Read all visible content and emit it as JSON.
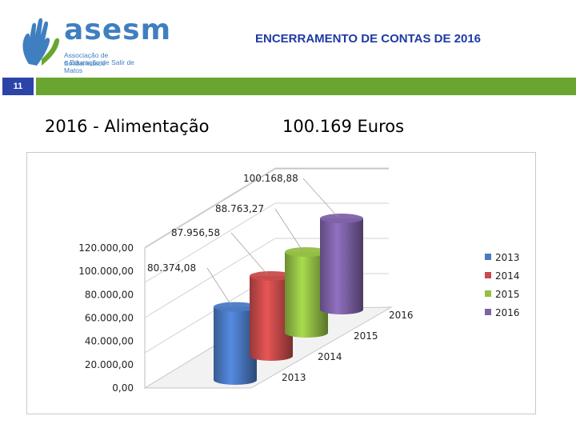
{
  "logo": {
    "name": "asesm",
    "subtitle_line1": "Associação de Solidariedade",
    "subtitle_line2": "e Educação de Salir de Matos"
  },
  "slide_title": "ENCERRAMENTO DE CONTAS DE 2016",
  "page_number": "11",
  "heading": {
    "left": "2016  -  Alimentação",
    "right": "100.169 Euros"
  },
  "colors": {
    "header_blue": "#2c44a8",
    "header_green": "#6aa62f",
    "logo_blue": "#3f7fbf"
  },
  "chart_data": {
    "type": "bar",
    "style": "3d-cylinder",
    "title": "",
    "xlabel": "",
    "ylabel": "",
    "ylim": [
      0,
      120000
    ],
    "y_ticks": [
      "0,00",
      "20.000,00",
      "40.000,00",
      "60.000,00",
      "80.000,00",
      "100.000,00",
      "120.000,00"
    ],
    "categories": [
      "2013",
      "2014",
      "2015",
      "2016"
    ],
    "values": [
      80374.08,
      87956.58,
      88763.27,
      100168.88
    ],
    "data_labels": [
      "80.374,08",
      "87.956,58",
      "88.763,27",
      "100.168,88"
    ],
    "colors": [
      "#4a7ac4",
      "#c94b4b",
      "#93bf45",
      "#7e62a8"
    ],
    "legend": {
      "position": "right",
      "entries": [
        "2013",
        "2014",
        "2015",
        "2016"
      ]
    },
    "grid": true
  }
}
